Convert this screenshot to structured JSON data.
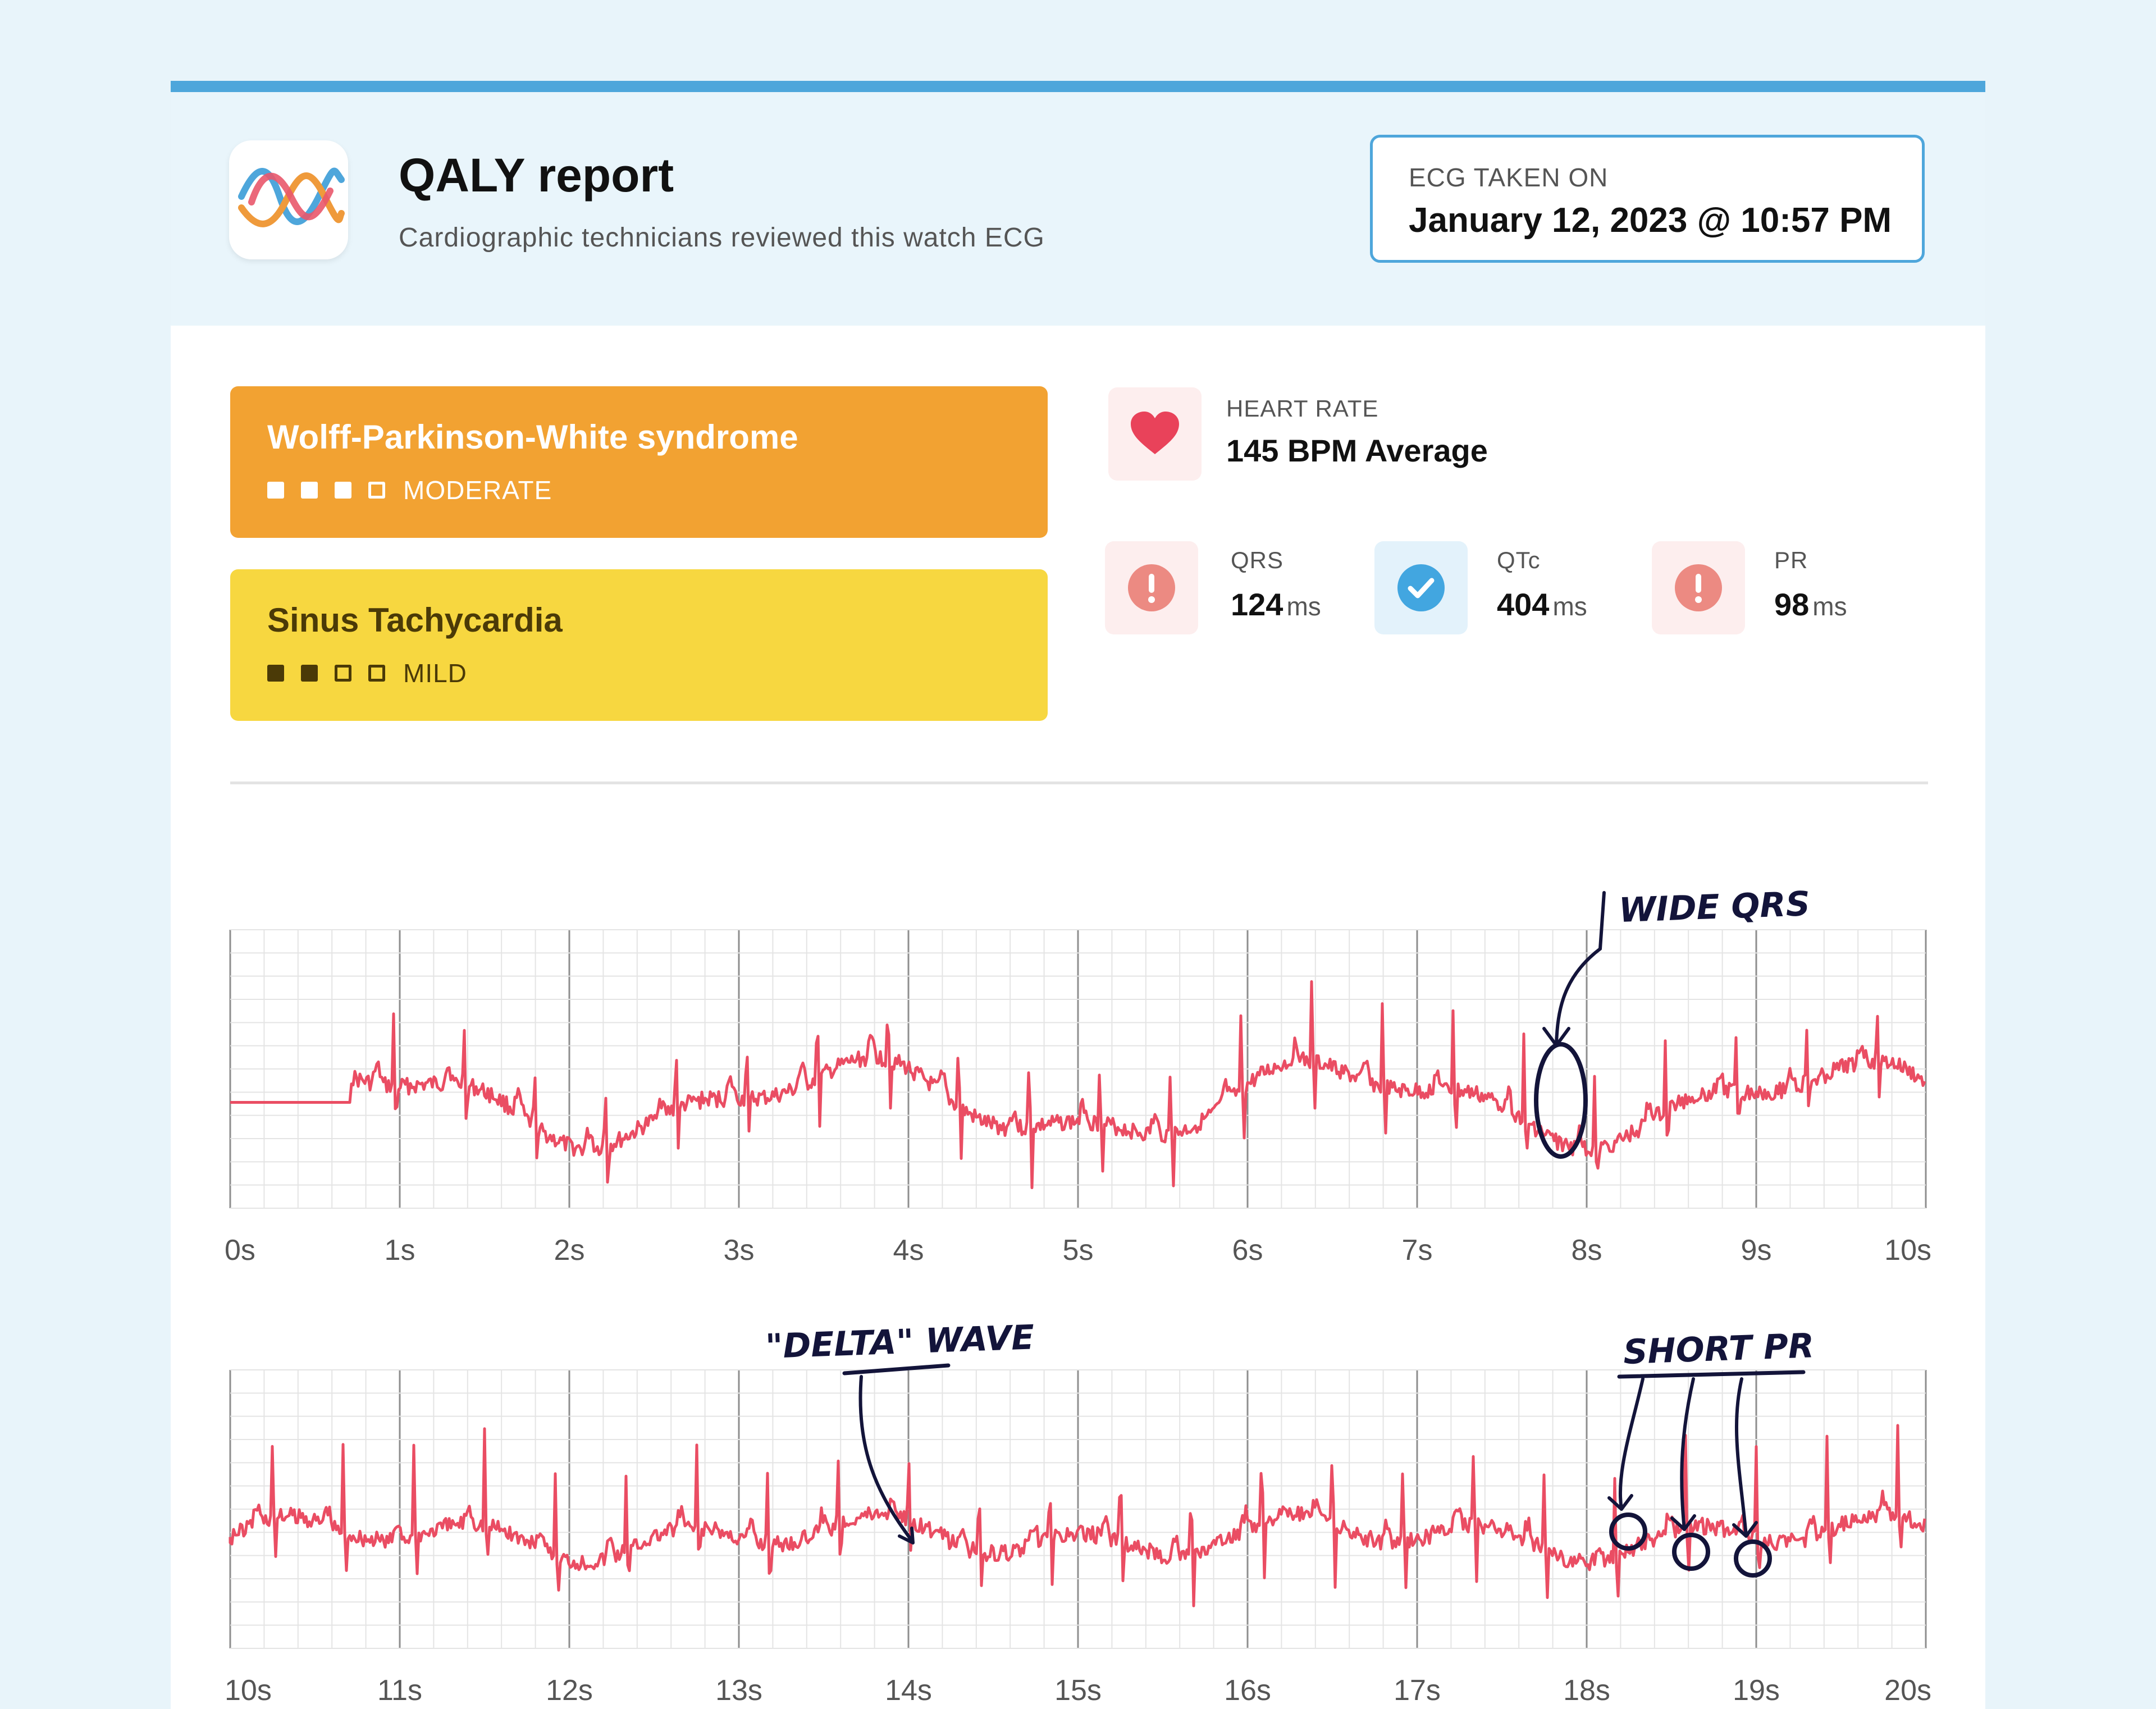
{
  "header": {
    "title": "QALY report",
    "subtitle": "Cardiographic technicians reviewed this watch ECG",
    "ecg_label": "ECG TAKEN ON",
    "ecg_date": "January 12, 2023 @ 10:57 PM"
  },
  "diagnoses": [
    {
      "name": "Wolff-Parkinson-White syndrome",
      "severity": "MODERATE",
      "level": 3,
      "max": 4,
      "color": "#f2a232"
    },
    {
      "name": "Sinus Tachycardia",
      "severity": "MILD",
      "level": 2,
      "max": 4,
      "color": "#f7d740"
    }
  ],
  "metrics": {
    "heart_rate": {
      "label": "HEART RATE",
      "value": "145 BPM Average",
      "icon": "heart-icon"
    },
    "qrs": {
      "label": "QRS",
      "value": "124",
      "unit": "ms",
      "status": "warning",
      "icon": "alert-icon"
    },
    "qtc": {
      "label": "QTc",
      "value": "404",
      "unit": "ms",
      "status": "normal",
      "icon": "check-icon"
    },
    "pr": {
      "label": "PR",
      "value": "98",
      "unit": "ms",
      "status": "warning",
      "icon": "alert-icon"
    }
  },
  "colors": {
    "accent": "#4ea6db",
    "trace": "#ea4d63",
    "ink": "#13143a",
    "warning_bg": "#fdeeee",
    "warning": "#ec8a82",
    "normal": "#42a6e0"
  },
  "chart_data": [
    {
      "type": "line",
      "x_ticks": [
        "0s",
        "1s",
        "2s",
        "3s",
        "4s",
        "5s",
        "6s",
        "7s",
        "8s",
        "9s",
        "10s"
      ],
      "xlim": [
        0,
        10
      ],
      "annotations": [
        {
          "text": "WIDE QRS",
          "x": 7.85
        }
      ]
    },
    {
      "type": "line",
      "x_ticks": [
        "10s",
        "11s",
        "12s",
        "13s",
        "14s",
        "15s",
        "16s",
        "17s",
        "18s",
        "19s",
        "20s"
      ],
      "xlim": [
        10,
        20
      ],
      "annotations": [
        {
          "text": "\"DELTA\" WAVE",
          "x": 14.0
        },
        {
          "text": "SHORT PR",
          "x": [
            18.2,
            18.6,
            19.0
          ]
        }
      ]
    }
  ]
}
